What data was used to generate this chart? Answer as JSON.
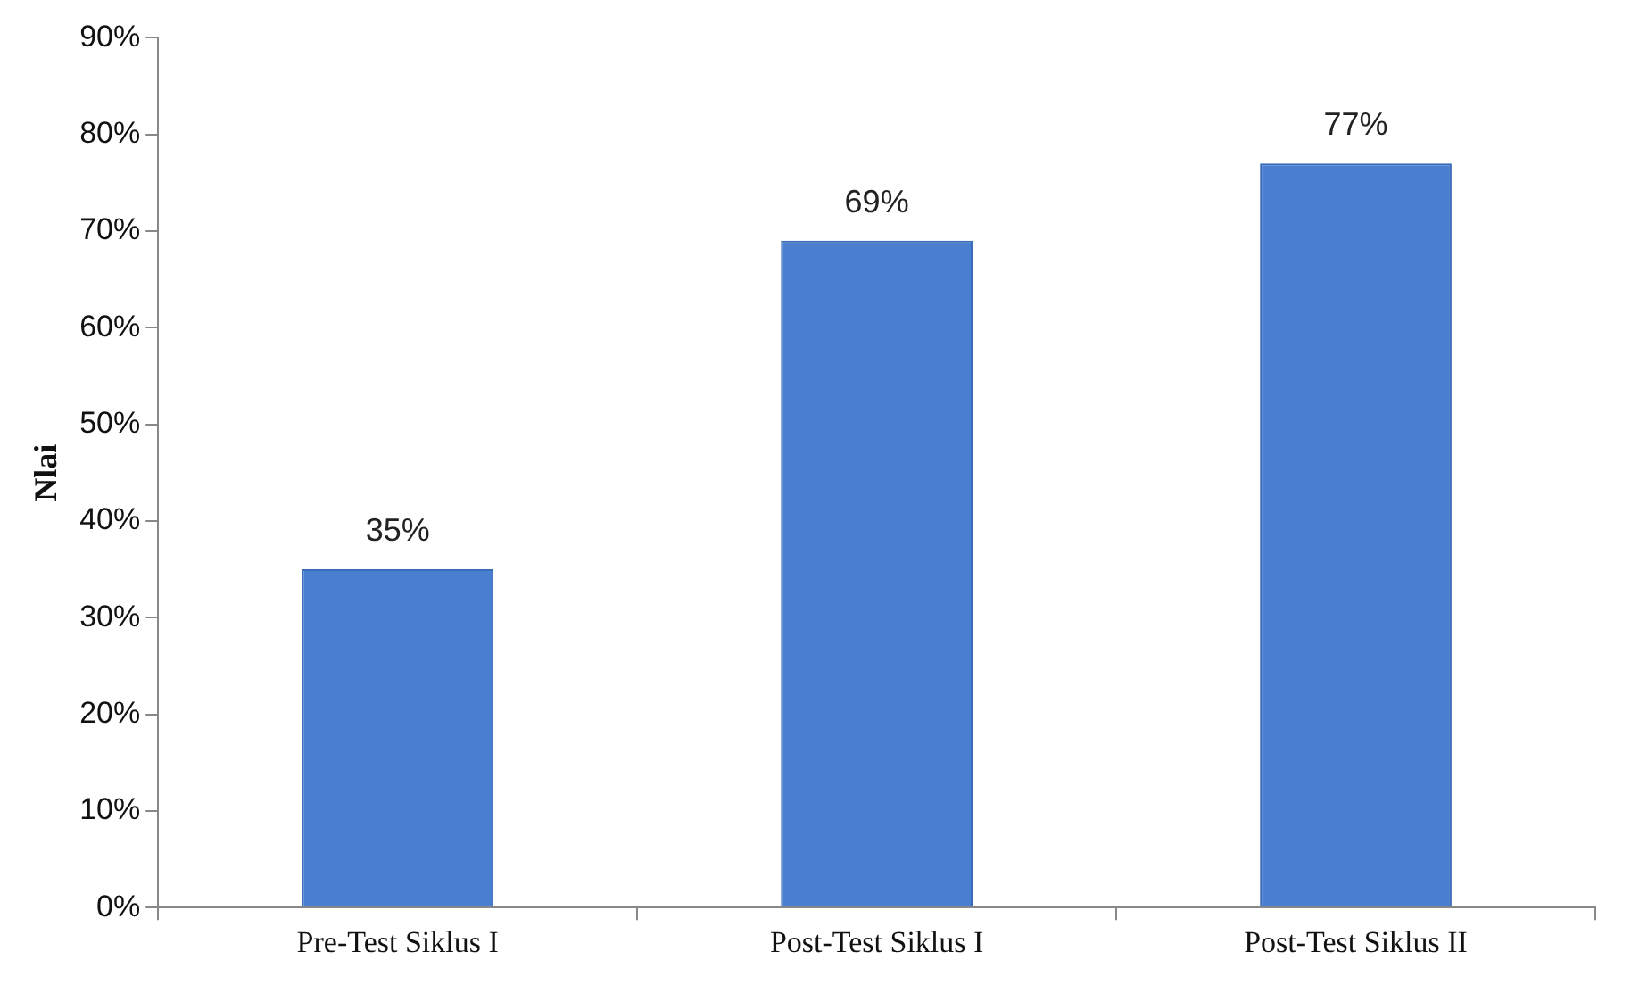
{
  "chart_data": {
    "type": "bar",
    "ylabel": "Nlai",
    "categories": [
      "Pre-Test Siklus I",
      "Post-Test Siklus I",
      "Post-Test Siklus II"
    ],
    "values": [
      35,
      69,
      77
    ],
    "value_labels": [
      "35%",
      "69%",
      "77%"
    ],
    "color": "#4a7fd0",
    "ylim": [
      0,
      90
    ],
    "yticks": [
      {
        "value": 0,
        "label": "0%"
      },
      {
        "value": 10,
        "label": "10%"
      },
      {
        "value": 20,
        "label": "20%"
      },
      {
        "value": 30,
        "label": "30%"
      },
      {
        "value": 40,
        "label": "40%"
      },
      {
        "value": 50,
        "label": "50%"
      },
      {
        "value": 60,
        "label": "60%"
      },
      {
        "value": 70,
        "label": "70%"
      },
      {
        "value": 80,
        "label": "80%"
      },
      {
        "value": 90,
        "label": "90%"
      }
    ],
    "grid": false,
    "legend": false
  }
}
